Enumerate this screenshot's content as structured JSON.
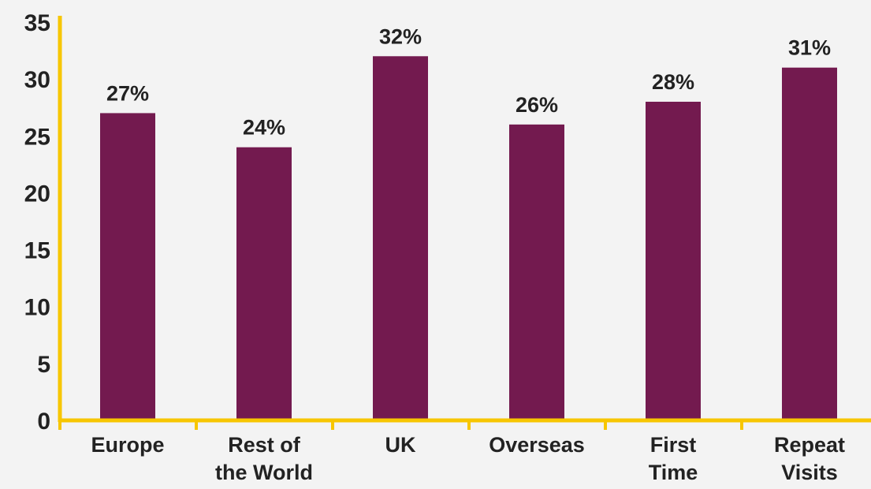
{
  "chart_data": {
    "type": "bar",
    "categories": [
      [
        "Europe"
      ],
      [
        "Rest of",
        "the World"
      ],
      [
        "UK"
      ],
      [
        "Overseas"
      ],
      [
        "First",
        "Time"
      ],
      [
        "Repeat",
        "Visits"
      ]
    ],
    "values": [
      27,
      24,
      32,
      26,
      28,
      31
    ],
    "data_labels": [
      "27%",
      "24%",
      "32%",
      "26%",
      "28%",
      "31%"
    ],
    "y_ticks": [
      "0",
      "5",
      "10",
      "15",
      "20",
      "25",
      "30",
      "35"
    ],
    "y_tick_values": [
      0,
      5,
      10,
      15,
      20,
      25,
      30,
      35
    ],
    "ylim": [
      0,
      35
    ],
    "title": "",
    "xlabel": "",
    "ylabel": "",
    "grid": false,
    "legend": "none",
    "colors": {
      "bar": "#731a4f",
      "axis": "#f7c600",
      "text": "#222222",
      "background": "#f3f3f3"
    }
  }
}
